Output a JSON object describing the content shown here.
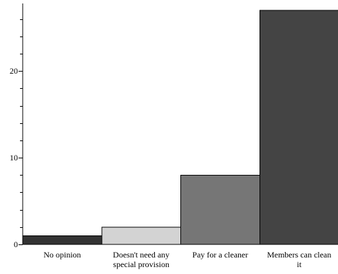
{
  "chart_data": {
    "type": "bar",
    "title": "",
    "xlabel": "",
    "ylabel": "",
    "categories": [
      "No opinion",
      "Doesn't need any special provision",
      "Pay for a cleaner",
      "Members can clean it"
    ],
    "category_lines": [
      [
        "No opinion"
      ],
      [
        "Doesn't need any",
        "special provision"
      ],
      [
        "Pay for a cleaner"
      ],
      [
        "Members can clean",
        "it"
      ]
    ],
    "values": [
      1,
      2,
      8,
      27
    ],
    "colors": [
      "#333333",
      "#d3d3d3",
      "#767676",
      "#444444"
    ],
    "ylim": [
      0,
      27.8
    ],
    "y_major_ticks": [
      0,
      10,
      20
    ],
    "y_minor_step": 2,
    "grid": false,
    "legend": "none"
  }
}
